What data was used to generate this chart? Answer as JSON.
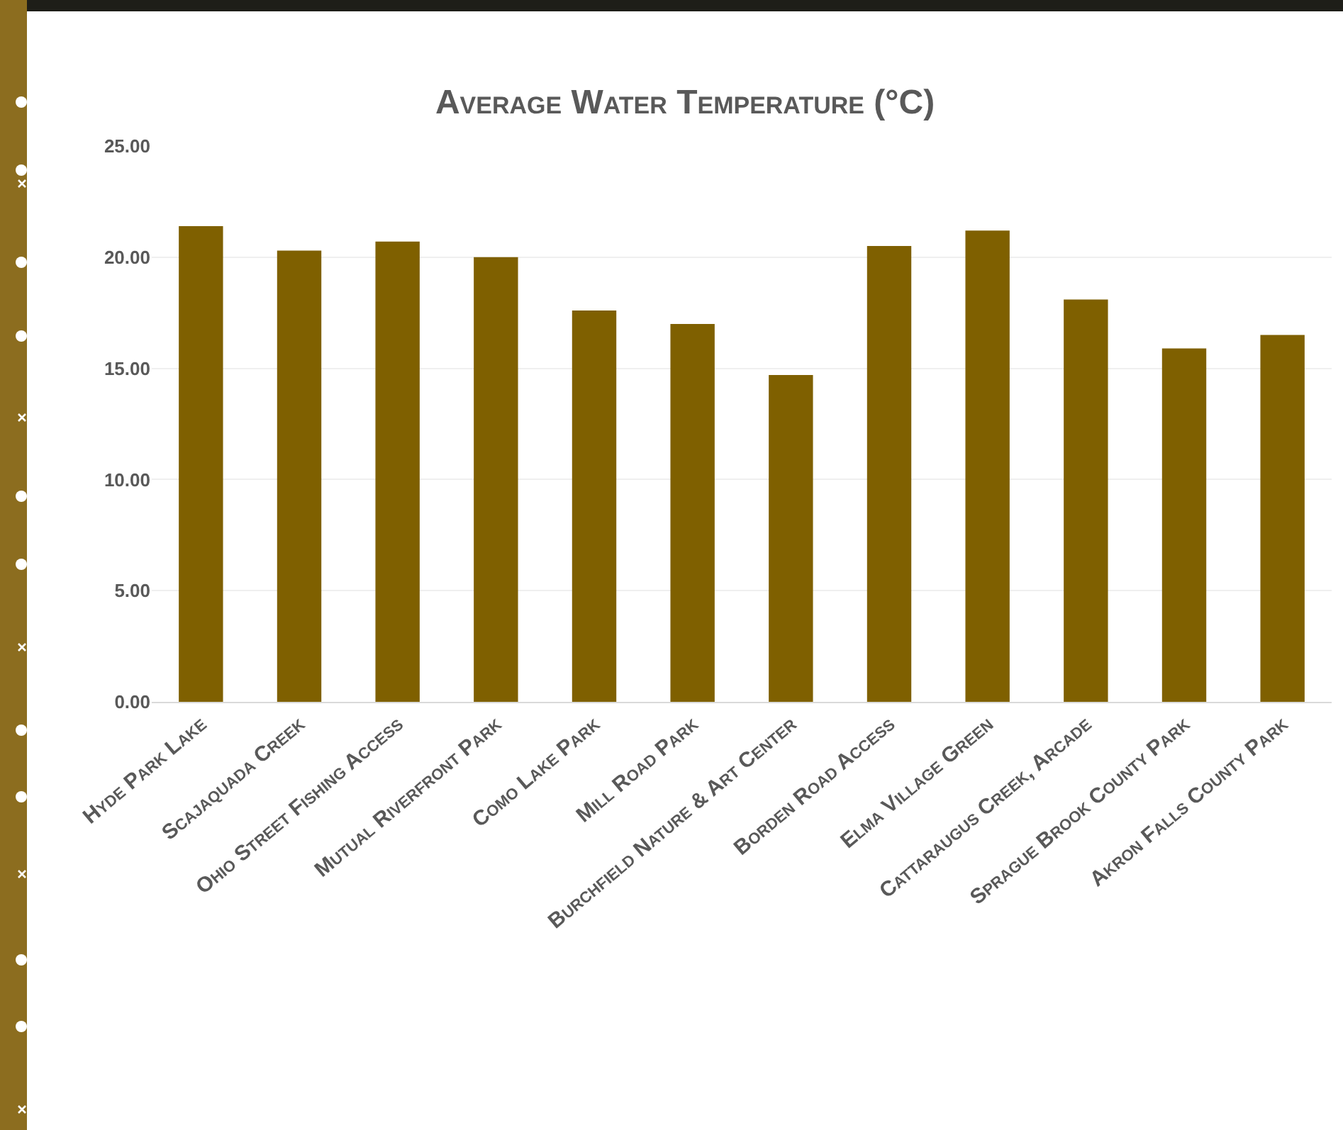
{
  "chart_data": {
    "type": "bar",
    "title": "Average Water Temperature (°C)",
    "categories": [
      "Hyde Park Lake",
      "Scajaquada Creek",
      "Ohio Street Fishing Access",
      "Mutual Riverfront Park",
      "Como Lake Park",
      "Mill Road Park",
      "Burchfield Nature & Art Center",
      "Borden Road Access",
      "Elma Village Green",
      "Cattaraugus Creek, Arcade",
      "Sprague Brook County Park",
      "Akron Falls County Park"
    ],
    "values": [
      21.4,
      20.3,
      20.7,
      20.0,
      17.6,
      17.0,
      14.7,
      20.5,
      21.2,
      18.1,
      15.9,
      16.5
    ],
    "color": "#7f6000",
    "ylim": [
      0,
      25
    ],
    "yticks": [
      {
        "value": 0,
        "label": "0.00"
      },
      {
        "value": 5,
        "label": "5.00"
      },
      {
        "value": 10,
        "label": "10.00"
      },
      {
        "value": 15,
        "label": "15.00"
      },
      {
        "value": 20,
        "label": "20.00"
      },
      {
        "value": 25,
        "label": "25.00"
      }
    ],
    "grid": "y"
  }
}
